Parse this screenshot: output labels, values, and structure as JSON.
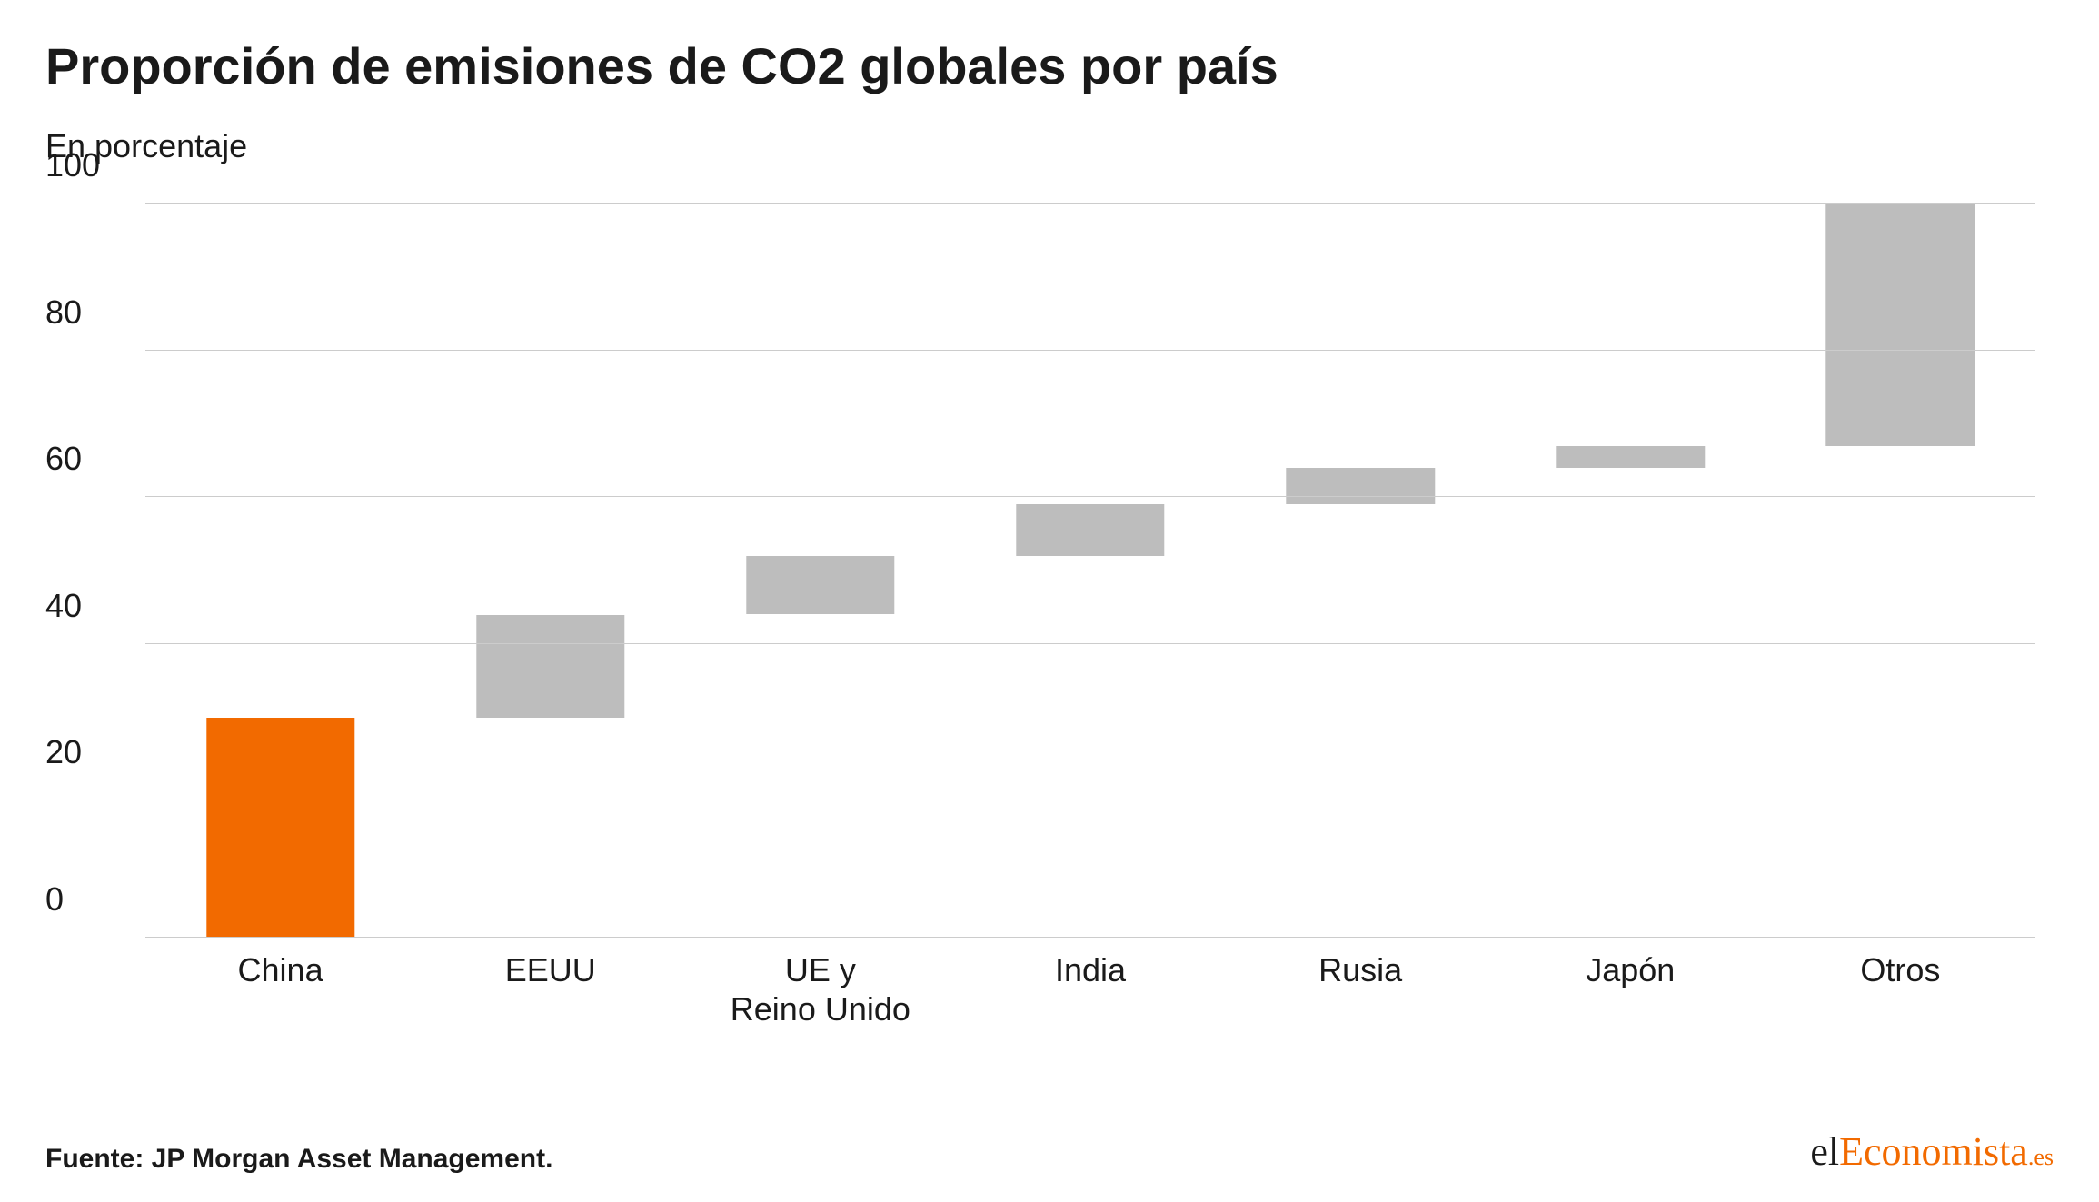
{
  "title": "Proporción de emisiones de CO2 globales por país",
  "subtitle": "En porcentaje",
  "source": "Fuente: JP Morgan Asset Management.",
  "brand": {
    "part1": "el",
    "part2": "Economista",
    "part3": ".es"
  },
  "chart": {
    "type": "waterfall-bar",
    "ylim": [
      0,
      100
    ],
    "yticks": [
      0,
      20,
      40,
      60,
      80,
      100
    ],
    "grid_color": "#cccccc",
    "background_color": "#ffffff",
    "axis_label_fontsize": 36,
    "bar_width_pct": 55,
    "highlight_color": "#f26a00",
    "default_color": "#bdbdbd",
    "categories": [
      "China",
      "EEUU",
      "UE y\nReino Unido",
      "India",
      "Rusia",
      "Japón",
      "Otros"
    ],
    "bars": [
      {
        "start": 0,
        "end": 30,
        "color": "#f26a00"
      },
      {
        "start": 30,
        "end": 44,
        "color": "#bdbdbd"
      },
      {
        "start": 44,
        "end": 52,
        "color": "#bdbdbd"
      },
      {
        "start": 52,
        "end": 59,
        "color": "#bdbdbd"
      },
      {
        "start": 59,
        "end": 64,
        "color": "#bdbdbd"
      },
      {
        "start": 64,
        "end": 67,
        "color": "#bdbdbd"
      },
      {
        "start": 67,
        "end": 100,
        "color": "#bdbdbd"
      }
    ]
  }
}
